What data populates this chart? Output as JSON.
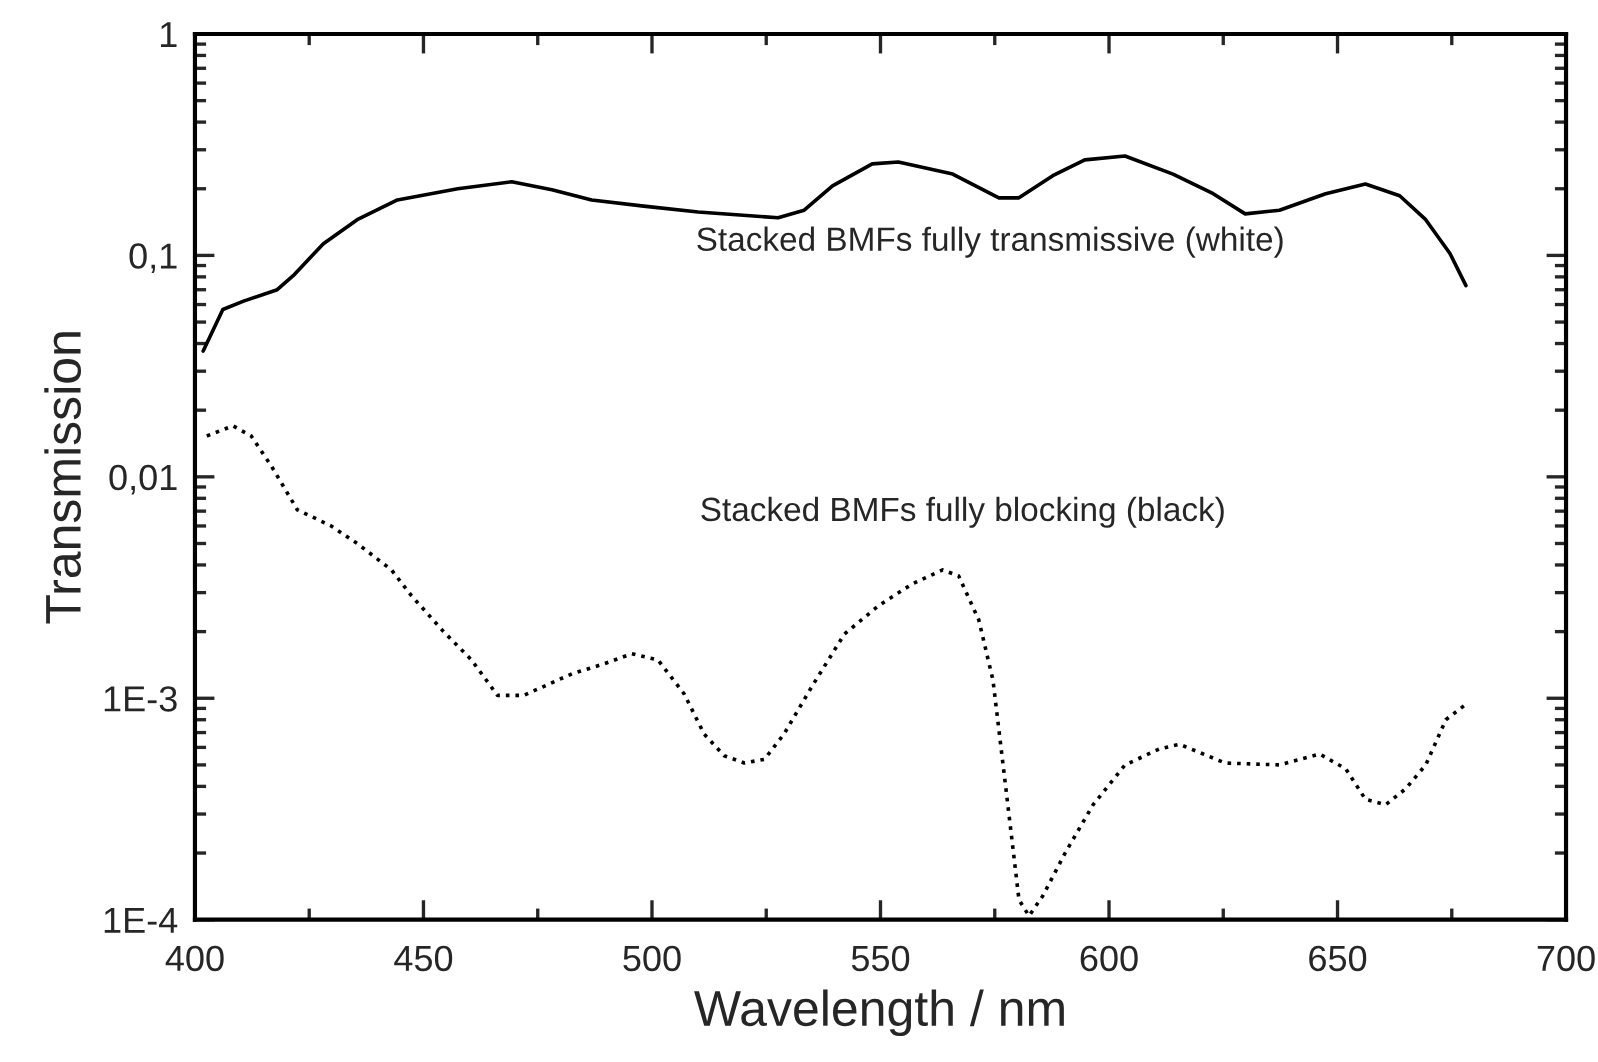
{
  "chart_data": {
    "type": "line",
    "xlabel": "Wavelength / nm",
    "ylabel": "Transmission",
    "log": "y",
    "grid": false,
    "legend": false,
    "marker": "none",
    "xlim": [
      400,
      700
    ],
    "xticks": [
      400,
      450,
      500,
      550,
      600,
      650,
      700
    ],
    "ylim": [
      0.0001,
      1
    ],
    "yticks": [
      {
        "value": 0.0001,
        "label": "1E-4"
      },
      {
        "value": 0.001,
        "label": "1E-3"
      },
      {
        "value": 0.01,
        "label": "0,01"
      },
      {
        "value": 0.1,
        "label": "0,1"
      },
      {
        "value": 1,
        "label": "1"
      }
    ],
    "series": [
      {
        "name": "Stacked BMFs fully transmissive (white)",
        "color": "#000000",
        "line_style": "solid",
        "x": [
          401.8,
          406.1,
          410.5,
          418.0,
          421.5,
          428.1,
          435.5,
          444.3,
          457.5,
          469.3,
          478.1,
          486.8,
          498.2,
          510.1,
          527.6,
          533.3,
          539.5,
          548.2,
          553.9,
          565.8,
          575.9,
          580.3,
          587.7,
          594.7,
          603.5,
          614.0,
          622.8,
          629.8,
          637.3,
          647.4,
          656.1,
          663.6,
          669.3,
          674.6,
          678.1
        ],
        "values": [
          0.037,
          0.057,
          0.062,
          0.07,
          0.081,
          0.113,
          0.145,
          0.178,
          0.2,
          0.215,
          0.198,
          0.178,
          0.167,
          0.157,
          0.148,
          0.16,
          0.206,
          0.259,
          0.264,
          0.233,
          0.182,
          0.182,
          0.229,
          0.27,
          0.281,
          0.233,
          0.19,
          0.154,
          0.16,
          0.19,
          0.21,
          0.186,
          0.145,
          0.102,
          0.073
        ]
      },
      {
        "name": "Stacked BMFs fully blocking (black)",
        "color": "#000000",
        "line_style": "dotted",
        "x": [
          402.6,
          408.3,
          412.3,
          416.7,
          422.4,
          429.8,
          435.5,
          443.0,
          447.4,
          454.4,
          460.5,
          466.2,
          471.9,
          482.5,
          489.5,
          495.6,
          501.3,
          507.0,
          511.4,
          515.8,
          520.2,
          524.6,
          528.9,
          535.1,
          542.1,
          549.6,
          557.0,
          563.6,
          567.1,
          571.5,
          574.6,
          577.2,
          580.3,
          582.5,
          585.5,
          590.4,
          596.5,
          603.5,
          611.0,
          615.4,
          625.4,
          637.3,
          646.1,
          651.8,
          656.1,
          660.5,
          664.9,
          669.3,
          673.7,
          678.1
        ],
        "values": [
          0.0153,
          0.017,
          0.0153,
          0.0112,
          0.0071,
          0.006,
          0.005,
          0.0038,
          0.0029,
          0.002,
          0.00149,
          0.00103,
          0.00103,
          0.00129,
          0.00143,
          0.00159,
          0.00149,
          0.00105,
          0.00069,
          0.00055,
          0.00051,
          0.00053,
          0.00069,
          0.00114,
          0.00195,
          0.00262,
          0.00329,
          0.0038,
          0.00357,
          0.00226,
          0.00121,
          0.00043,
          0.000123,
          0.000104,
          0.000128,
          0.0002,
          0.00033,
          0.0005,
          0.00059,
          0.00062,
          0.00051,
          0.0005,
          0.00056,
          0.00048,
          0.00035,
          0.00033,
          0.00039,
          0.0005,
          0.0008,
          0.00094
        ]
      }
    ]
  }
}
